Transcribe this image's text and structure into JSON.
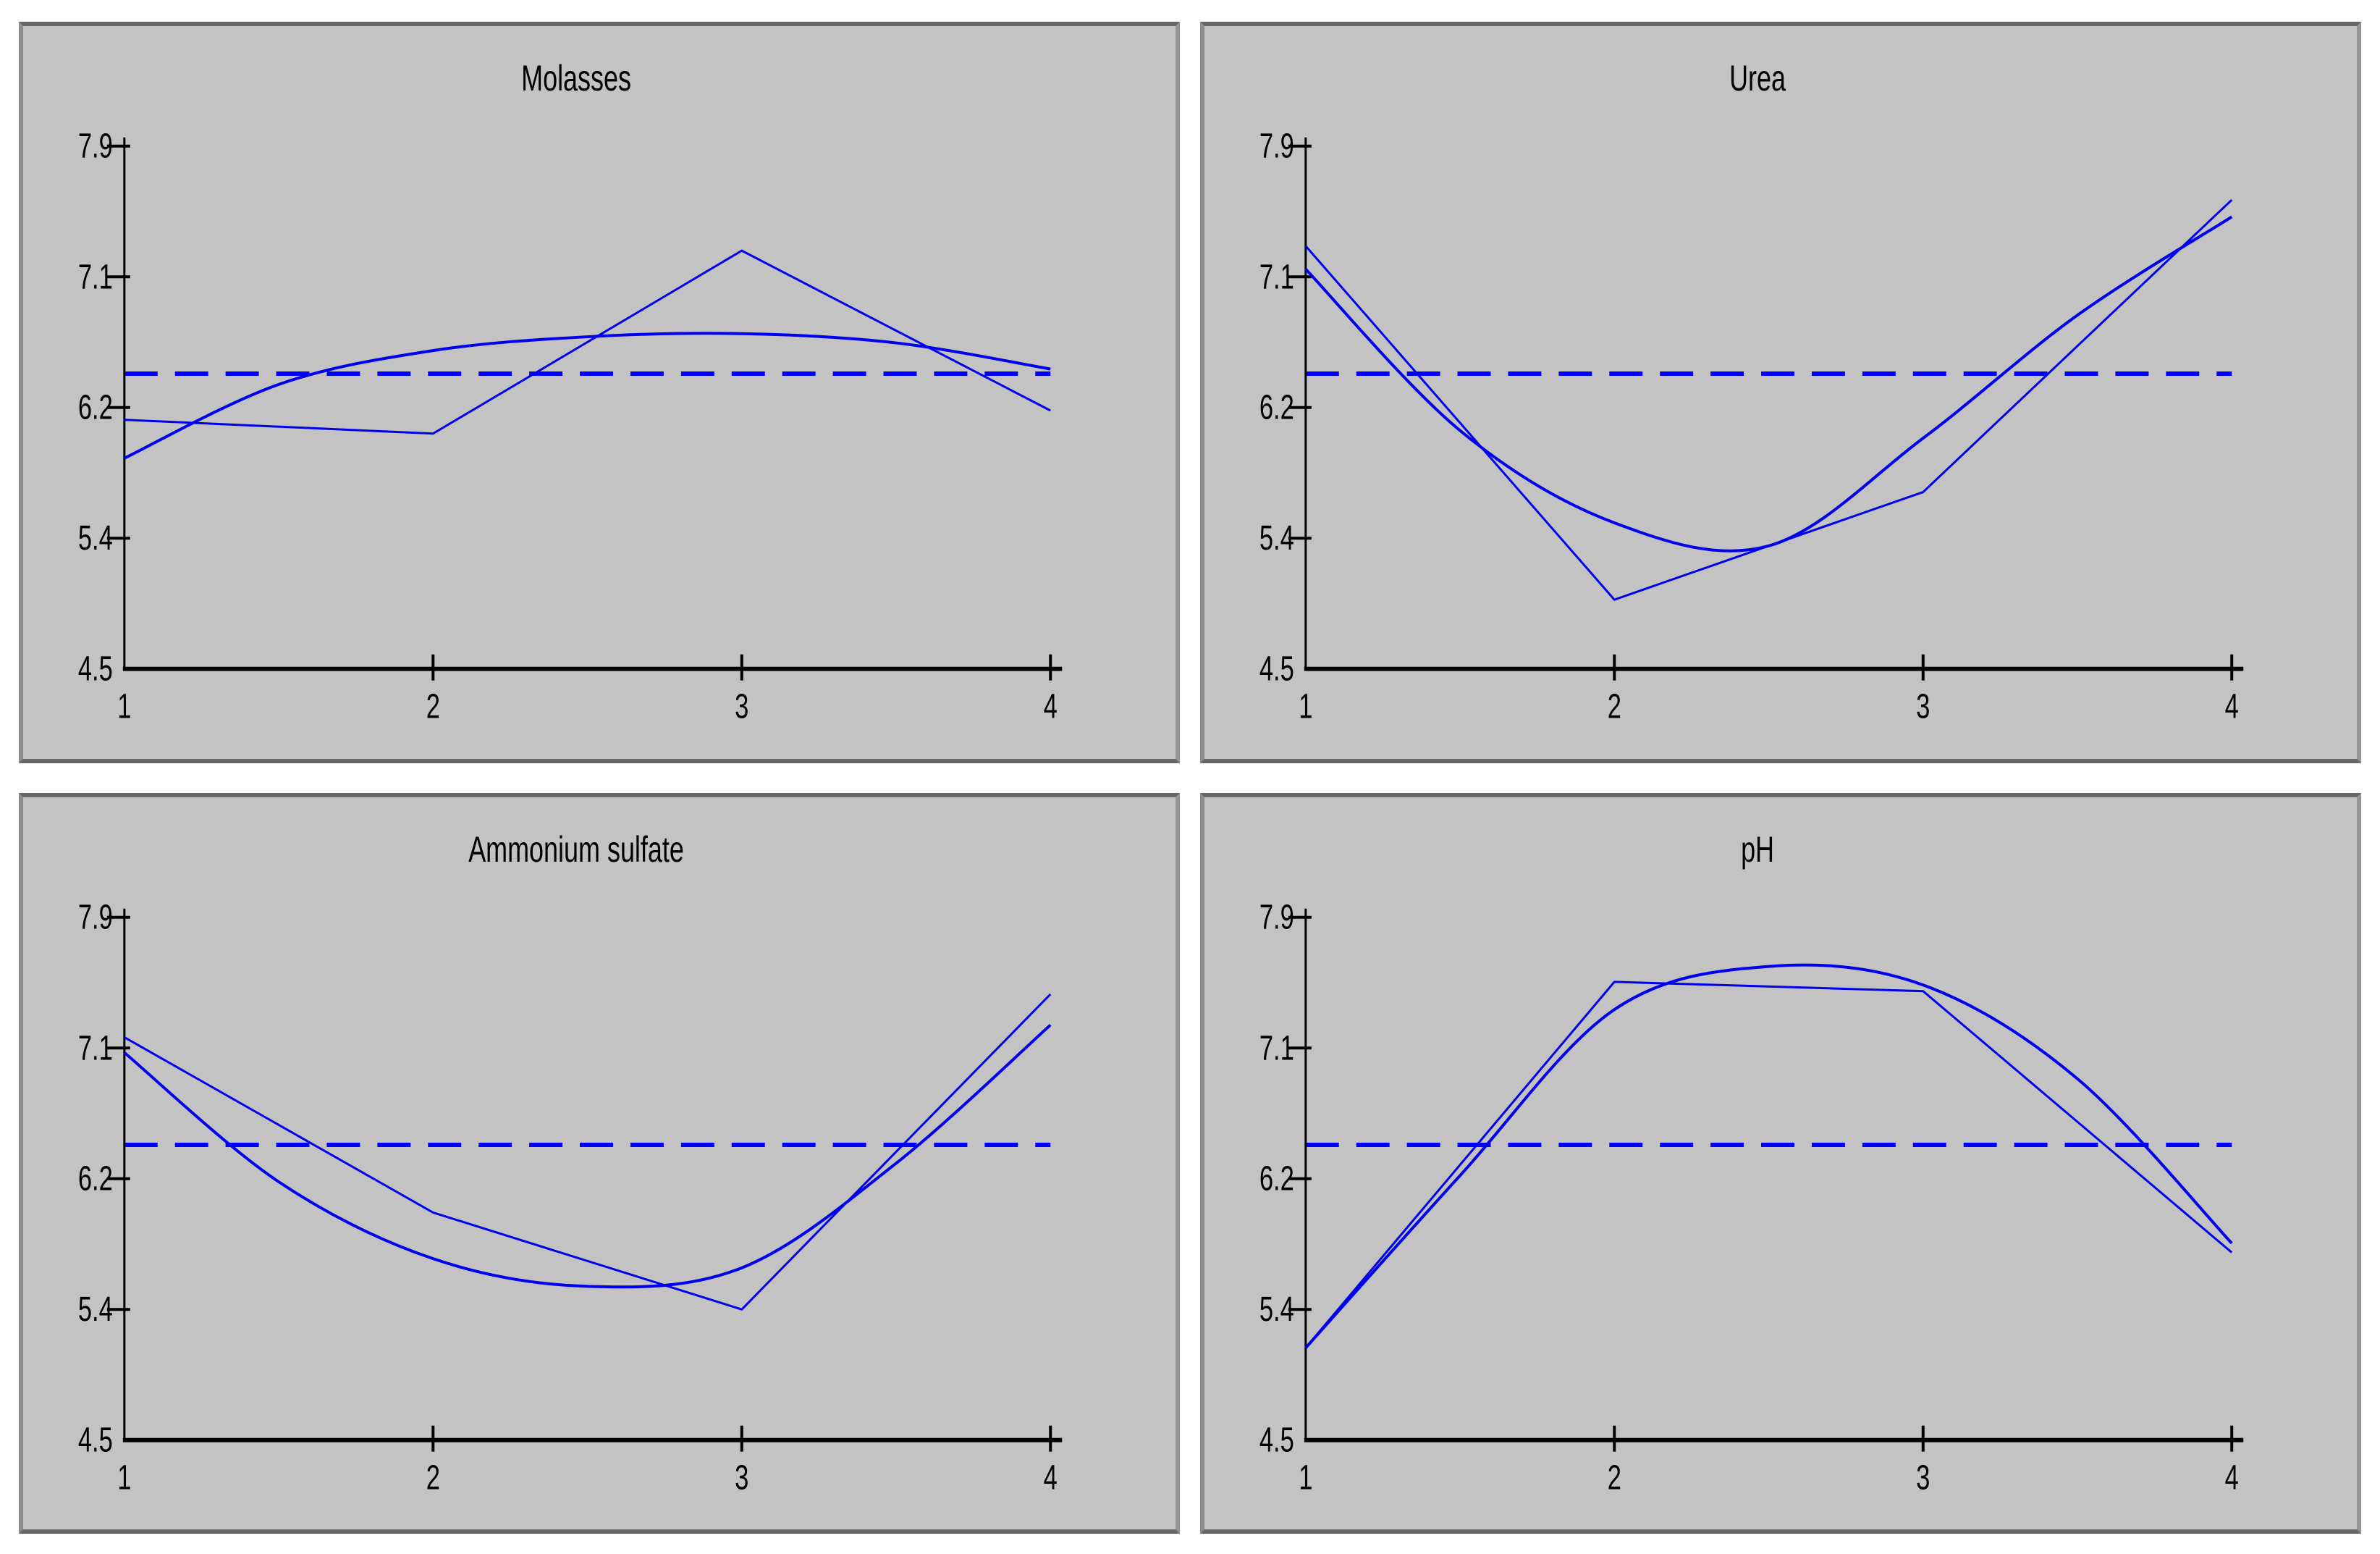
{
  "window": {
    "background": "#ffffff",
    "description": "2x2 grid of main effects plots"
  },
  "colors": {
    "panel_background": "#c3c3c3",
    "panel_border": "#676767",
    "line_blue": "#0000ee",
    "mean_line_blue": "#0000ff",
    "axis_black": "#000000",
    "title_navy": "#000080",
    "title_black": "#000000"
  },
  "axes": {
    "y_tick_labels": [
      "7.9",
      "7.1",
      "6.2",
      "5.4",
      "4.5"
    ],
    "x_tick_labels": [
      "1",
      "2",
      "3",
      "4"
    ],
    "y_range": [
      4.5,
      7.9
    ],
    "x_range": [
      1,
      4
    ],
    "grand_mean": 6.42,
    "grid": "off",
    "legend": "none"
  },
  "chart_data": [
    {
      "type": "line",
      "title": "Molasses",
      "title_color": "#000080",
      "x": [
        1,
        2,
        3,
        4
      ],
      "ylim": [
        4.5,
        7.9
      ],
      "xlim": [
        1,
        4
      ],
      "series": [
        {
          "name": "level-means",
          "values": [
            6.12,
            6.03,
            7.22,
            6.18
          ]
        },
        {
          "name": "fitted-curve",
          "x": [
            1,
            1.5,
            2,
            2.5,
            3,
            3.5,
            4
          ],
          "values": [
            5.87,
            6.35,
            6.57,
            6.66,
            6.68,
            6.62,
            6.45
          ]
        },
        {
          "name": "grand-mean",
          "style": "dashed",
          "value": 6.42
        }
      ]
    },
    {
      "type": "line",
      "title": "Urea",
      "title_color": "#000000",
      "x": [
        1,
        2,
        3,
        4
      ],
      "ylim": [
        4.5,
        7.9
      ],
      "xlim": [
        1,
        4
      ],
      "series": [
        {
          "name": "level-means",
          "values": [
            7.25,
            4.95,
            5.65,
            7.55
          ]
        },
        {
          "name": "fitted-curve",
          "x": [
            1,
            1.5,
            2,
            2.5,
            3,
            3.5,
            4
          ],
          "values": [
            7.1,
            6.05,
            5.45,
            5.3,
            6.0,
            6.8,
            7.44
          ]
        },
        {
          "name": "grand-mean",
          "style": "dashed",
          "value": 6.42
        }
      ]
    },
    {
      "type": "line",
      "title": "Ammonium sulfate",
      "title_color": "#000000",
      "x": [
        1,
        2,
        3,
        4
      ],
      "ylim": [
        4.5,
        7.9
      ],
      "xlim": [
        1,
        4
      ],
      "series": [
        {
          "name": "level-means",
          "values": [
            7.12,
            5.98,
            5.35,
            7.4
          ]
        },
        {
          "name": "fitted-curve",
          "x": [
            1,
            1.5,
            2,
            2.5,
            3,
            3.5,
            4
          ],
          "values": [
            7.02,
            6.18,
            5.68,
            5.5,
            5.62,
            6.3,
            7.2
          ]
        },
        {
          "name": "grand-mean",
          "style": "dashed",
          "value": 6.42
        }
      ]
    },
    {
      "type": "line",
      "title": "pH",
      "title_color": "#000000",
      "x": [
        1,
        2,
        3,
        4
      ],
      "ylim": [
        4.5,
        7.9
      ],
      "xlim": [
        1,
        4
      ],
      "series": [
        {
          "name": "level-means",
          "values": [
            5.1,
            7.48,
            7.42,
            5.72
          ]
        },
        {
          "name": "fitted-curve",
          "x": [
            1,
            1.5,
            2,
            2.5,
            3,
            3.5,
            4
          ],
          "values": [
            5.1,
            6.22,
            7.3,
            7.58,
            7.46,
            6.85,
            5.78
          ]
        },
        {
          "name": "grand-mean",
          "style": "dashed",
          "value": 6.42
        }
      ]
    }
  ]
}
